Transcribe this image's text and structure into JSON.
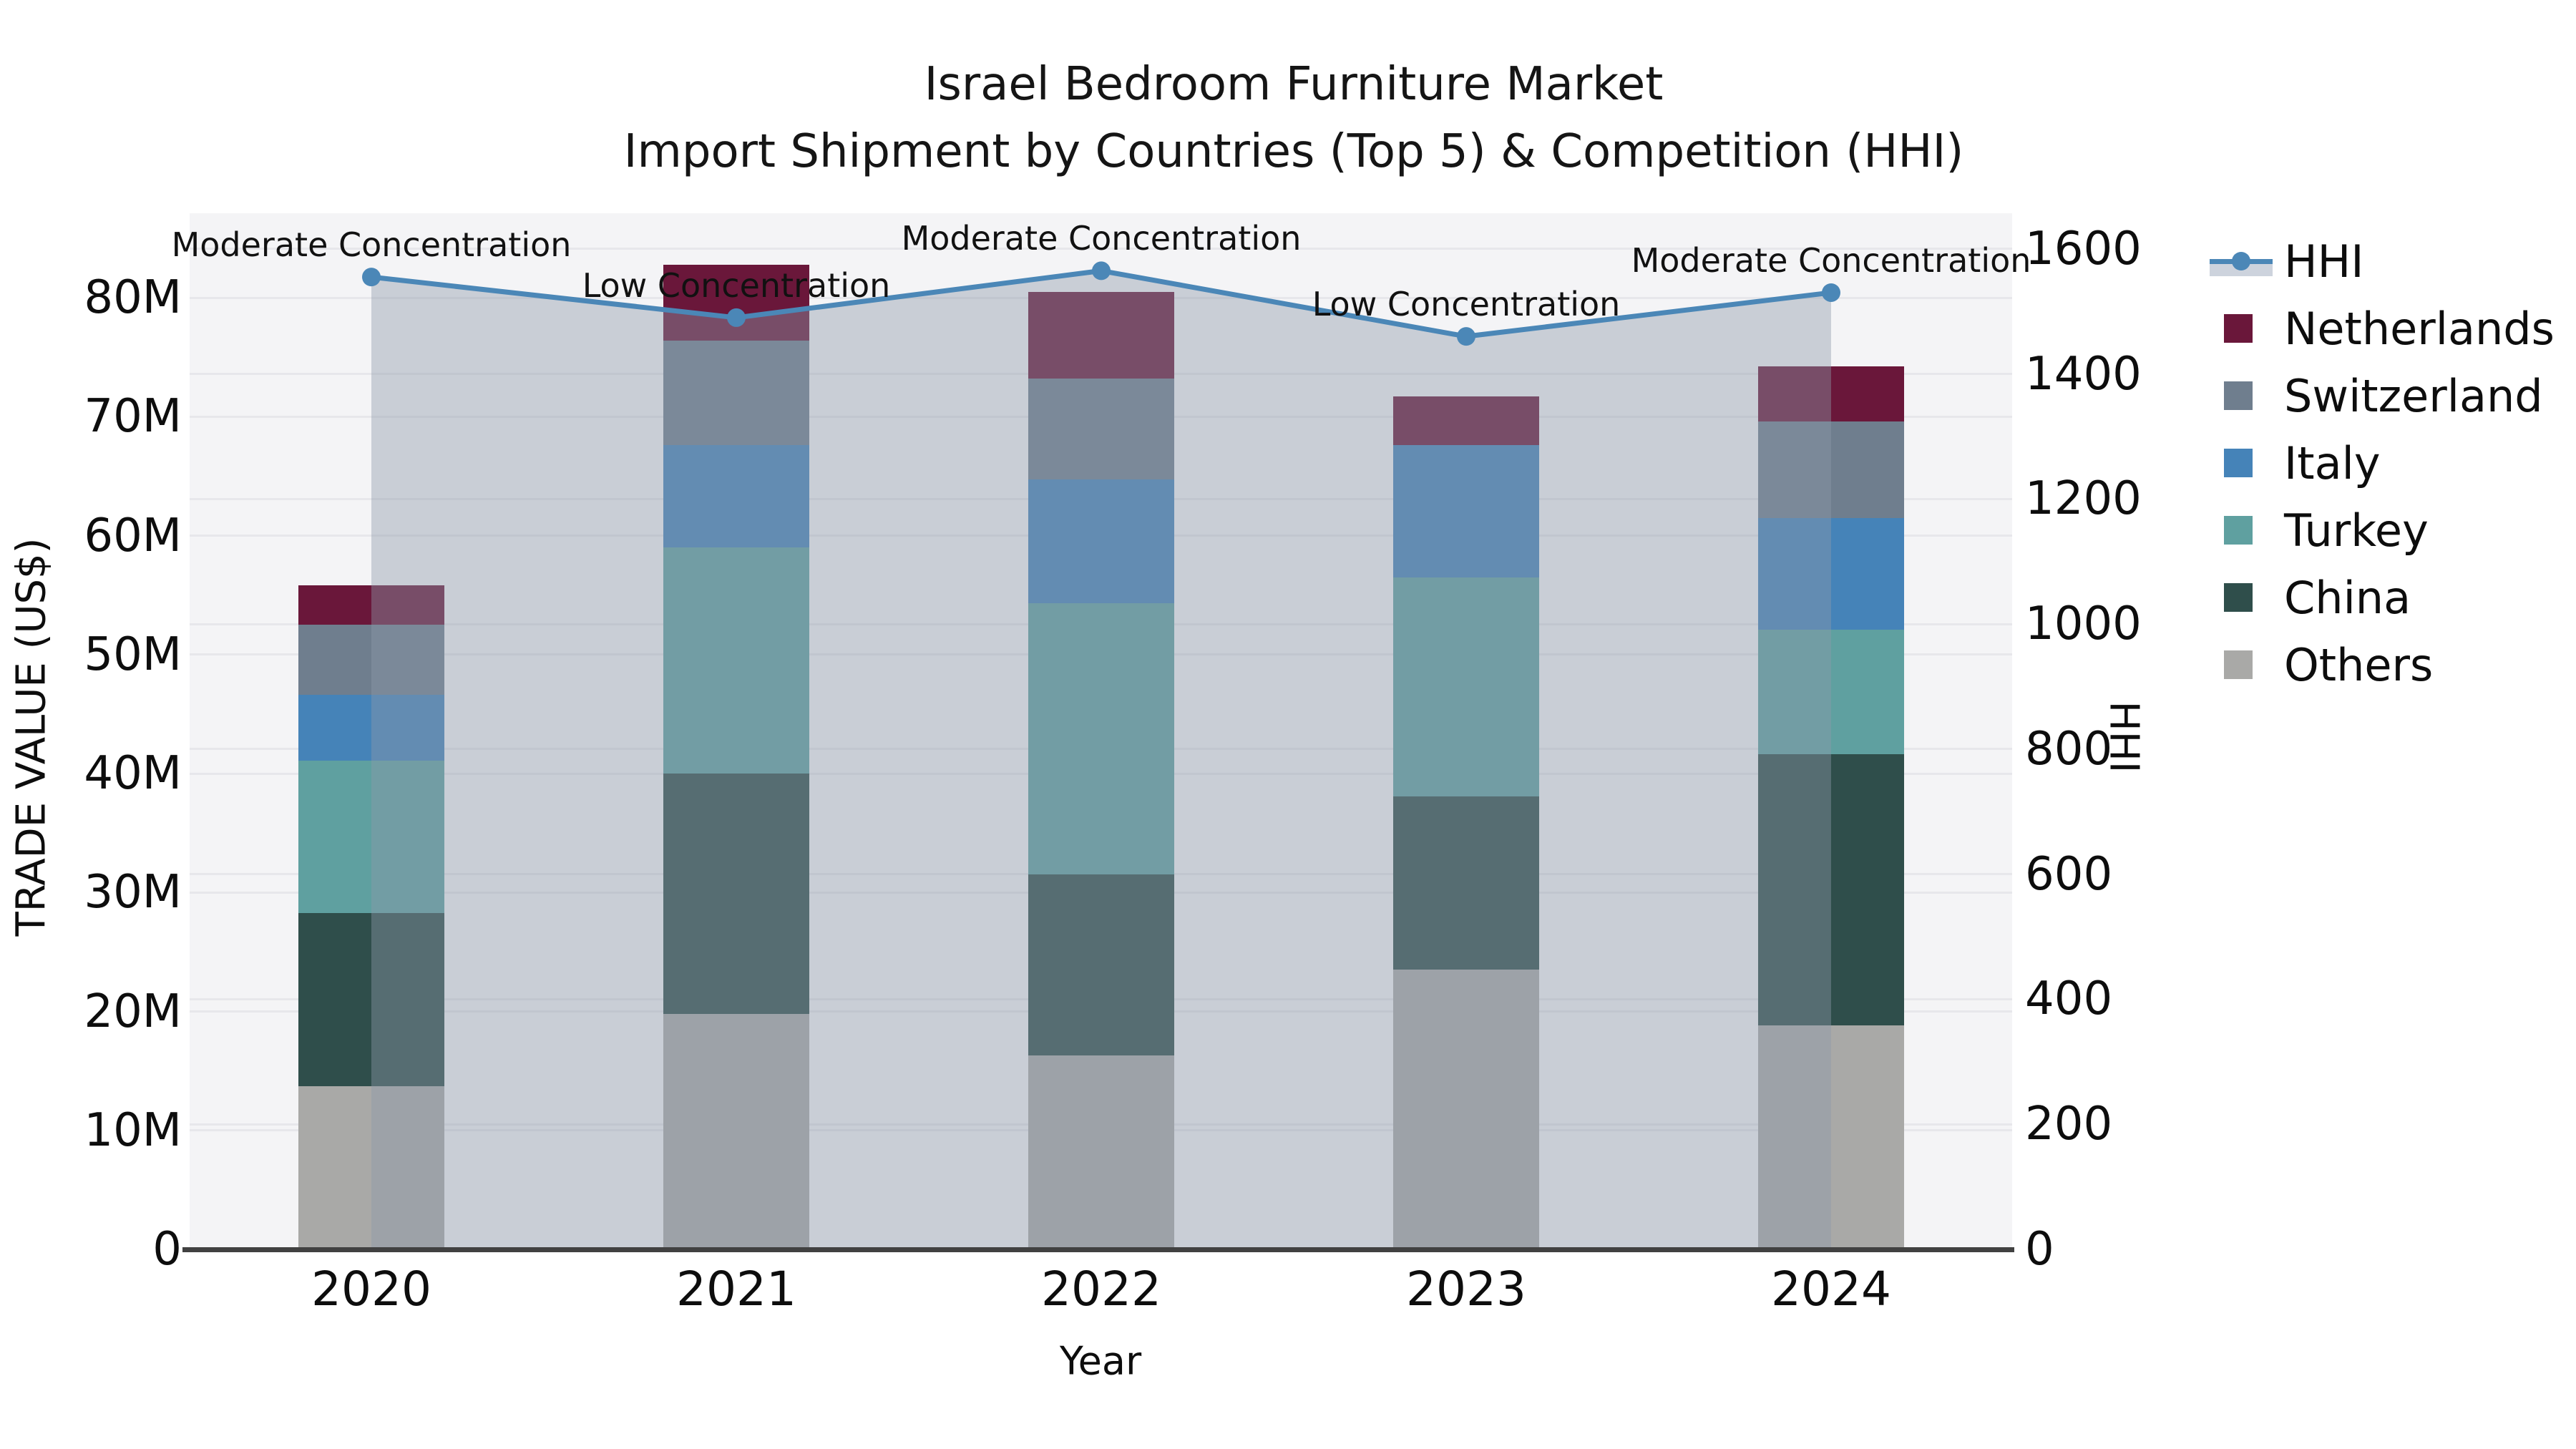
{
  "chart_data": {
    "type": "bar",
    "title": "Israel Bedroom Furniture Market",
    "subtitle": "Import Shipment by Countries (Top 5) & Competition (HHI)",
    "xlabel": "Year",
    "ylabel_left": "TRADE VALUE (US$)",
    "ylabel_right": "HHI",
    "categories": [
      "2020",
      "2021",
      "2022",
      "2023",
      "2024"
    ],
    "bar_unit": "M US$",
    "series": [
      {
        "name": "Others",
        "color": "#a9a9a7",
        "values": [
          13.7,
          19.8,
          16.3,
          23.5,
          18.8
        ]
      },
      {
        "name": "China",
        "color": "#2f4e4b",
        "values": [
          14.6,
          20.2,
          15.2,
          14.6,
          22.8
        ]
      },
      {
        "name": "Turkey",
        "color": "#5fa0a0",
        "values": [
          12.8,
          19.0,
          22.8,
          18.4,
          10.5
        ]
      },
      {
        "name": "Italy",
        "color": "#4583b8",
        "values": [
          5.5,
          8.6,
          10.4,
          11.1,
          9.4
        ]
      },
      {
        "name": "Switzerland",
        "color": "#6f7e8e",
        "values": [
          5.9,
          8.8,
          8.5,
          0.0,
          8.1
        ]
      },
      {
        "name": "Netherlands",
        "color": "#6a173a",
        "values": [
          3.3,
          6.4,
          7.3,
          4.1,
          4.6
        ]
      }
    ],
    "hhi": {
      "name": "HHI",
      "color": "#4b87b7",
      "area_fill": "rgba(141,152,169,0.42)",
      "legend_band": "#cdd3dd",
      "values": [
        1555,
        1490,
        1565,
        1460,
        1530
      ]
    },
    "annotations": [
      "Moderate Concentration",
      "Low Concentration",
      "Moderate Concentration",
      "Low Concentration",
      "Moderate Concentration"
    ],
    "y_left": {
      "lim": [
        0,
        87.1
      ],
      "ticks": [
        {
          "value": 0,
          "label": "0"
        },
        {
          "value": 10,
          "label": "10M"
        },
        {
          "value": 20,
          "label": "20M"
        },
        {
          "value": 30,
          "label": "30M"
        },
        {
          "value": 40,
          "label": "40M"
        },
        {
          "value": 50,
          "label": "50M"
        },
        {
          "value": 60,
          "label": "60M"
        },
        {
          "value": 70,
          "label": "70M"
        },
        {
          "value": 80,
          "label": "80M"
        }
      ]
    },
    "y_right": {
      "lim": [
        0,
        1657
      ],
      "ticks": [
        {
          "value": 0,
          "label": "0"
        },
        {
          "value": 200,
          "label": "200"
        },
        {
          "value": 400,
          "label": "400"
        },
        {
          "value": 600,
          "label": "600"
        },
        {
          "value": 800,
          "label": "800"
        },
        {
          "value": 1000,
          "label": "1000"
        },
        {
          "value": 1200,
          "label": "1200"
        },
        {
          "value": 1400,
          "label": "1400"
        },
        {
          "value": 1600,
          "label": "1600"
        }
      ]
    },
    "grid": "on",
    "legend_position": "right"
  }
}
